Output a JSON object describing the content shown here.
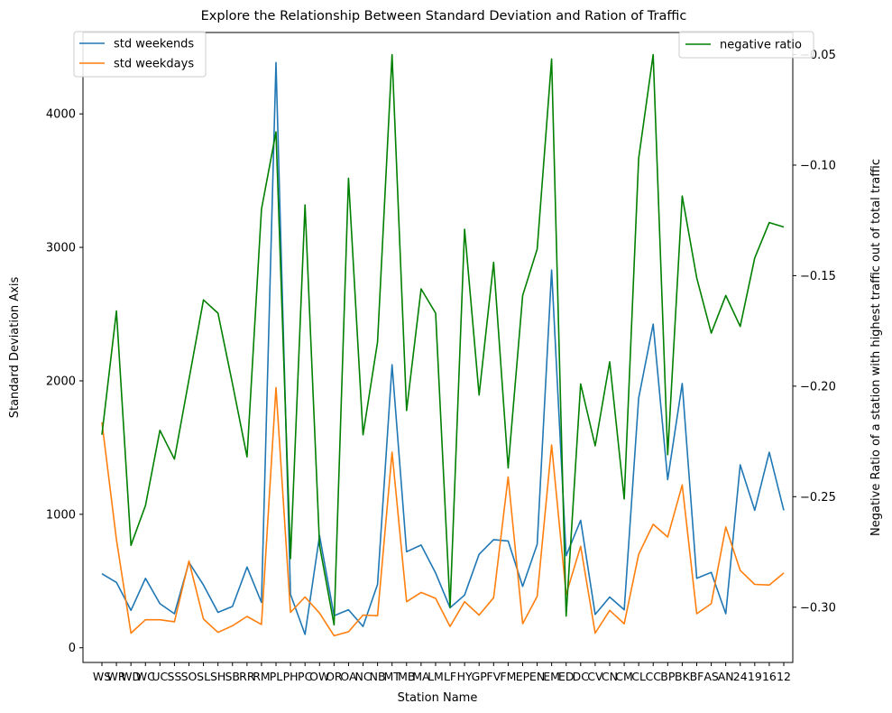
{
  "chart_data": {
    "type": "line",
    "title": "Explore the Relationship Between Standard Deviation and Ration of Traffic",
    "xlabel": "Station Name",
    "ylabel": "Standard Deviation Axis",
    "ylabel_right": "Negative Ratio of a station with highest traffic out of total traffic",
    "categories": [
      "WS",
      "WR",
      "WD",
      "WC",
      "UC",
      "SS",
      "SO",
      "SL",
      "SH",
      "SB",
      "RR",
      "RM",
      "PL",
      "PH",
      "PC",
      "OW",
      "OR",
      "OA",
      "NC",
      "NB",
      "MT",
      "MB",
      "MA",
      "LM",
      "LF",
      "HY",
      "GP",
      "FV",
      "FM",
      "EP",
      "EN",
      "EM",
      "ED",
      "DC",
      "CV",
      "CN",
      "CM",
      "CL",
      "CC",
      "BP",
      "BK",
      "BF",
      "AS",
      "AN",
      "24",
      "19",
      "16",
      "12"
    ],
    "xtick_labels": [
      "WS",
      "WR",
      "WD",
      "WC",
      "UC",
      "SS",
      "SO",
      "SL",
      "SH",
      "SB",
      "RR",
      "RM",
      "PL",
      "PH",
      "PC",
      "OW",
      "OR",
      "OA",
      "NC",
      "NB",
      "MT",
      "MB",
      "MA",
      "LM",
      "LF",
      "HY",
      "GP",
      "FV",
      "FM",
      "EP",
      "EN",
      "EM",
      "ED",
      "DC",
      "CV",
      "CN",
      "CM",
      "CL",
      "CC",
      "BP",
      "BK",
      "BF",
      "AS",
      "AN",
      "24",
      "19",
      "16",
      "12"
    ],
    "ylim": [
      -110,
      4610
    ],
    "yticks": [
      0,
      1000,
      2000,
      3000,
      4000
    ],
    "ylim_right": [
      -0.325,
      -0.04
    ],
    "yticks_right": [
      -0.3,
      -0.25,
      -0.2,
      -0.15,
      -0.1,
      -0.05
    ],
    "yticks_right_labels": [
      "−0.30",
      "−0.25",
      "−0.20",
      "−0.15",
      "−0.10",
      "−0.05"
    ],
    "legend_left_placement": "top-left",
    "legend_right_placement": "top-right",
    "grid": false,
    "series": [
      {
        "name": "std weekends",
        "axis": "left",
        "color": "#1f77b4",
        "values": [
          555,
          490,
          280,
          520,
          330,
          255,
          640,
          470,
          265,
          310,
          605,
          340,
          4385,
          400,
          100,
          840,
          240,
          285,
          160,
          475,
          2120,
          720,
          770,
          560,
          300,
          395,
          700,
          810,
          800,
          460,
          775,
          2830,
          690,
          955,
          250,
          380,
          285,
          1870,
          2425,
          1260,
          1980,
          520,
          565,
          255,
          1370,
          1030,
          1465,
          1030
        ]
      },
      {
        "name": "std weekdays",
        "axis": "left",
        "color": "#ff7f0e",
        "values": [
          1690,
          810,
          110,
          210,
          210,
          195,
          650,
          215,
          115,
          165,
          235,
          175,
          1950,
          265,
          380,
          260,
          90,
          120,
          245,
          240,
          1465,
          345,
          415,
          370,
          160,
          345,
          245,
          375,
          1280,
          180,
          385,
          1520,
          400,
          760,
          110,
          280,
          180,
          700,
          925,
          830,
          1220,
          255,
          330,
          905,
          580,
          475,
          470,
          560
        ]
      },
      {
        "name": "negative ratio",
        "axis": "right",
        "color": "#008000",
        "values": [
          -0.222,
          -0.166,
          -0.272,
          -0.254,
          -0.22,
          -0.233,
          -0.197,
          -0.161,
          -0.167,
          -0.199,
          -0.232,
          -0.12,
          -0.085,
          -0.278,
          -0.118,
          -0.272,
          -0.308,
          -0.106,
          -0.222,
          -0.18,
          -0.05,
          -0.211,
          -0.156,
          -0.167,
          -0.3,
          -0.129,
          -0.204,
          -0.144,
          -0.237,
          -0.159,
          -0.138,
          -0.052,
          -0.304,
          -0.199,
          -0.227,
          -0.189,
          -0.251,
          -0.097,
          -0.05,
          -0.231,
          -0.114,
          -0.151,
          -0.176,
          -0.159,
          -0.173,
          -0.142,
          -0.126,
          -0.128
        ]
      }
    ]
  }
}
